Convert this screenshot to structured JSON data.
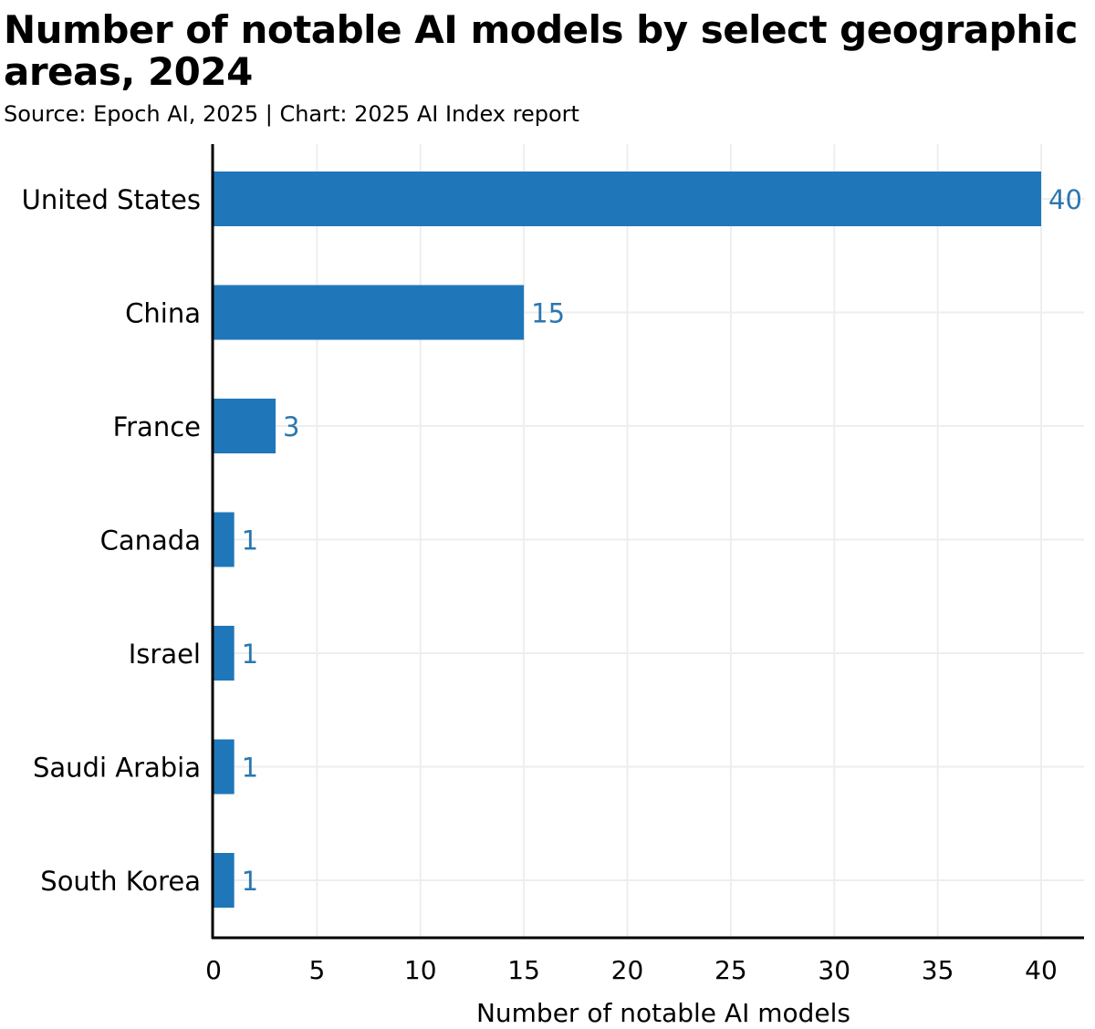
{
  "chart_data": {
    "type": "bar",
    "orientation": "horizontal",
    "title": "Number of notable AI models by select geographic areas, 2024",
    "subtitle": "Source: Epoch AI, 2025 | Chart: 2025 AI Index report",
    "categories": [
      "United States",
      "China",
      "France",
      "Canada",
      "Israel",
      "Saudi Arabia",
      "South Korea"
    ],
    "values": [
      40,
      15,
      3,
      1,
      1,
      1,
      1
    ],
    "xlabel": "Number of notable AI models",
    "ylabel": "",
    "xlim": [
      0,
      42
    ],
    "xticks": [
      0,
      5,
      10,
      15,
      20,
      25,
      30,
      35,
      40
    ],
    "grid": true,
    "data_labels": true,
    "colors": {
      "bar": "#1f77b9",
      "label": "#2a77b0",
      "grid": "#eeeeee"
    }
  }
}
